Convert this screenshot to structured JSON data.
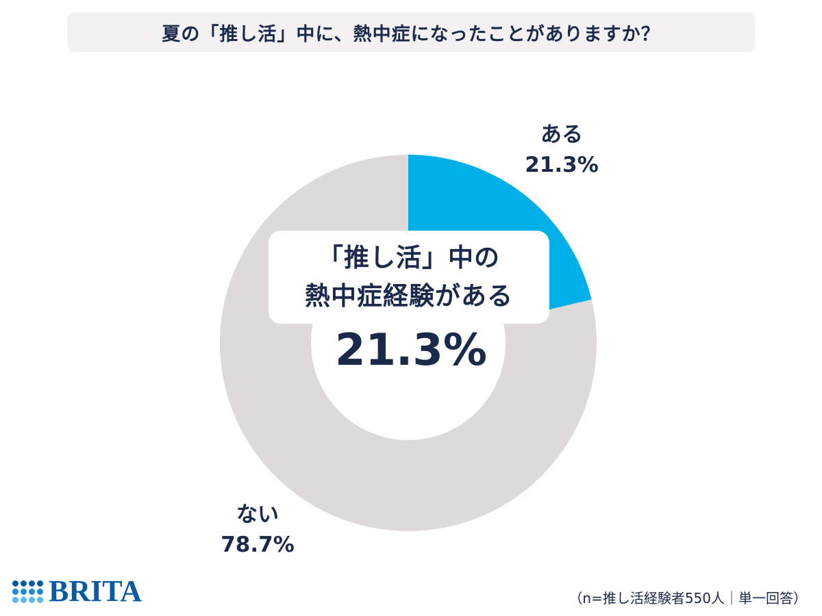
{
  "title": "夏の「推し活」中に、熱中症になったことがありますか？",
  "chart_data": {
    "type": "pie",
    "subtype": "donut",
    "slices": [
      {
        "label": "ある",
        "value": 21.3,
        "display": "21.3%",
        "color": "#00aee8"
      },
      {
        "label": "ない",
        "value": 78.7,
        "display": "78.7%",
        "color": "#dedadb"
      }
    ],
    "center": {
      "line1": "「推し活」中の",
      "line2": "熱中症経験がある",
      "value": "21.3%"
    }
  },
  "footnote": "（n=推し活経験者550人｜単一回答）",
  "logo": {
    "text": "BRITA",
    "color": "#0a5aa3",
    "dot_colors": [
      "#0a5aa3",
      "#1e88d6",
      "#5bb8ee"
    ]
  }
}
